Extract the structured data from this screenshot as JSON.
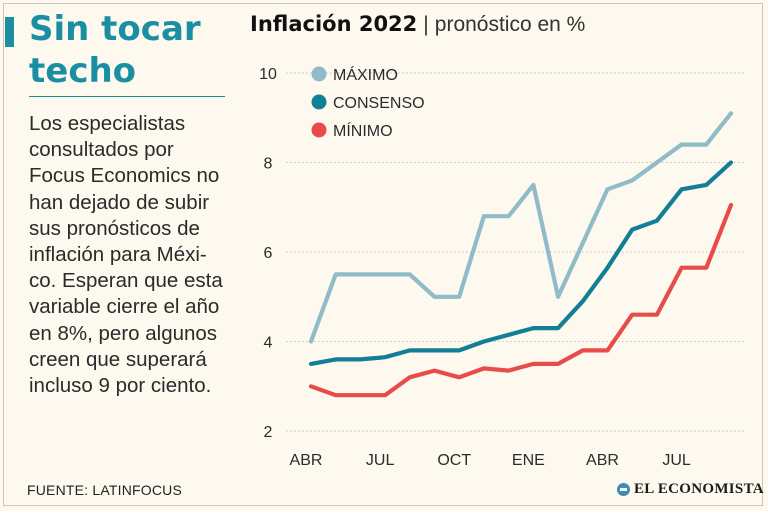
{
  "headline": {
    "line1": "Sin tocar",
    "line2": "techo"
  },
  "body_lines": [
    "Los especialistas",
    "consultados por",
    "Focus Economics no",
    "han dejado de subir",
    "sus pronósticos de",
    "inflación para Méxi-",
    "co. Esperan que esta",
    "variable cierre el año",
    "en 8%, pero algunos",
    "creen que superará",
    "incluso 9 por ciento."
  ],
  "source": "FUENTE: LATINFOCUS",
  "logo": {
    "text": "EL ECONOMISTA",
    "icon": "el-economista-logo-icon"
  },
  "colors": {
    "accent": "#1a8fa3",
    "maximo": "#8fbcc8",
    "consenso": "#127f95",
    "minimo": "#e84c4a"
  },
  "chart_data": {
    "type": "line",
    "title": "Inflación 2022",
    "title_separator": "|",
    "subtitle": "pronóstico en %",
    "y_ticks": [
      "10",
      "8",
      "6",
      "4",
      "2"
    ],
    "ylim": [
      2,
      10
    ],
    "x_tick_labels": [
      "ABR",
      "JUL",
      "OCT",
      "ENE",
      "ABR",
      "JUL"
    ],
    "x_tick_indices": [
      0,
      3,
      6,
      9,
      12,
      15
    ],
    "n_points": 18,
    "grid": true,
    "legend_position": "top-left",
    "series": [
      {
        "name": "MÁXIMO",
        "color": "#8fbcc8",
        "values": [
          4.0,
          5.5,
          5.5,
          5.5,
          5.5,
          5.0,
          5.0,
          6.8,
          6.8,
          7.5,
          5.0,
          6.2,
          7.4,
          7.6,
          8.0,
          8.4,
          8.4,
          9.1
        ]
      },
      {
        "name": "CONSENSO",
        "color": "#127f95",
        "values": [
          3.5,
          3.6,
          3.6,
          3.65,
          3.8,
          3.8,
          3.8,
          4.0,
          4.15,
          4.3,
          4.3,
          4.9,
          5.65,
          6.5,
          6.7,
          7.4,
          7.5,
          8.0
        ]
      },
      {
        "name": "MÍNIMO",
        "color": "#e84c4a",
        "values": [
          3.0,
          2.8,
          2.8,
          2.8,
          3.2,
          3.35,
          3.2,
          3.4,
          3.35,
          3.5,
          3.5,
          3.8,
          3.8,
          4.6,
          4.6,
          5.65,
          5.65,
          7.05
        ]
      }
    ]
  }
}
